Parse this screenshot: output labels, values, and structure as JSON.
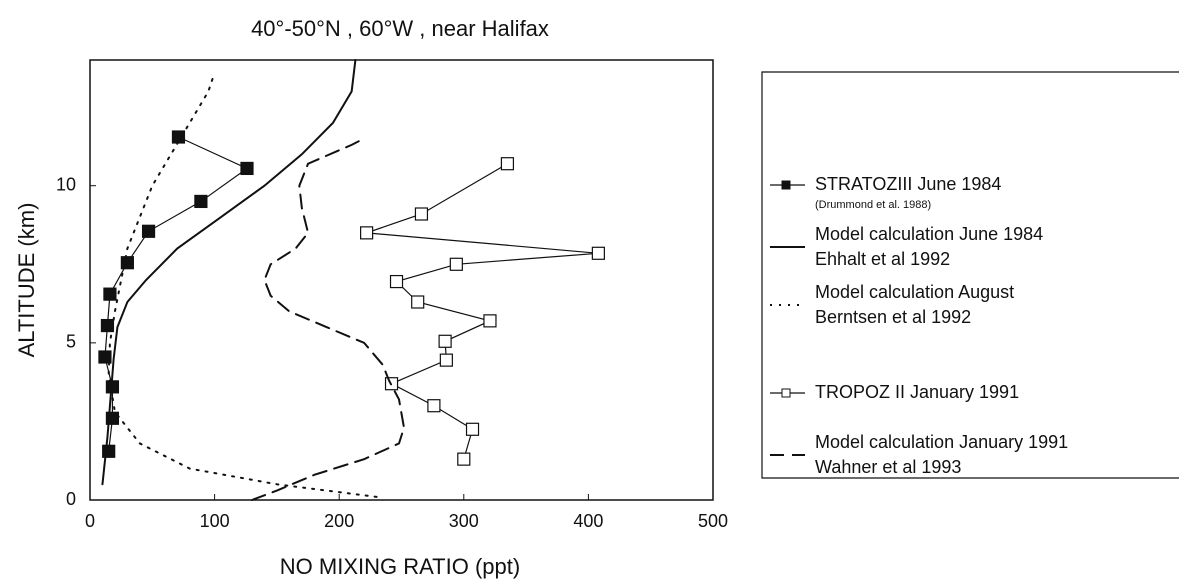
{
  "chart_data": {
    "type": "line",
    "title": "40°-50°N , 60°W , near Halifax",
    "x_label": "NO MIXING RATIO (ppt)",
    "y_label": "ALTITUDE (km)",
    "xlim": [
      0,
      500
    ],
    "ylim": [
      0,
      14
    ],
    "xticks": [
      0,
      100,
      200,
      300,
      400,
      500
    ],
    "yticks": [
      0,
      5,
      10
    ],
    "grid": false,
    "series": [
      {
        "name": "STRATOZIII June 1984",
        "source": "(Drummond et al. 1988)",
        "color": "#111111",
        "style": "solid",
        "marker": "filled-square",
        "x": [
          71,
          126,
          89,
          47,
          30,
          16,
          14,
          12,
          18,
          18,
          15
        ],
        "values": [
          11.55,
          10.55,
          9.5,
          8.55,
          7.55,
          6.55,
          5.55,
          4.55,
          3.6,
          2.6,
          1.55
        ]
      },
      {
        "name": "Model calculation June 1984",
        "source": "Ehhalt et al 1992",
        "color": "#111111",
        "style": "solid",
        "marker": null,
        "x": [
          10,
          14,
          17,
          19,
          22,
          30,
          45,
          70,
          105,
          140,
          170,
          195,
          210,
          213
        ],
        "values": [
          0.5,
          2,
          3.5,
          4.5,
          5.5,
          6.3,
          7,
          8,
          9,
          10,
          11,
          12,
          13,
          14
        ]
      },
      {
        "name": "Model calculation August",
        "source": "Berntsen et al 1992",
        "color": "#111111",
        "style": "dotted",
        "marker": null,
        "x": [
          230,
          150,
          80,
          40,
          20,
          15,
          16,
          20,
          25,
          30,
          40,
          50,
          65,
          80,
          95,
          100
        ],
        "values": [
          0.1,
          0.5,
          1,
          1.8,
          2.8,
          4,
          5,
          6,
          7,
          8,
          9,
          10,
          11,
          12,
          13,
          13.6
        ]
      },
      {
        "name": "TROPOZ II January 1991",
        "source": null,
        "color": "#111111",
        "style": "solid",
        "marker": "open-square",
        "x": [
          335,
          266,
          222,
          408,
          294,
          246,
          263,
          321,
          285,
          286,
          242,
          276,
          307,
          300
        ],
        "values": [
          10.7,
          9.1,
          8.5,
          7.85,
          7.5,
          6.95,
          6.3,
          5.7,
          5.05,
          4.45,
          3.7,
          3.0,
          2.25,
          1.3
        ]
      },
      {
        "name": "Model calculation January 1991",
        "source": "Wahner et al 1993",
        "color": "#111111",
        "style": "dashed",
        "marker": null,
        "x": [
          130,
          150,
          180,
          220,
          248,
          252,
          248,
          240,
          235,
          220,
          190,
          160,
          145,
          140,
          145,
          165,
          175,
          170,
          168,
          175,
          210,
          220
        ],
        "values": [
          0,
          0.3,
          0.8,
          1.3,
          1.8,
          2.3,
          3.2,
          3.8,
          4.3,
          5,
          5.5,
          6,
          6.5,
          7,
          7.5,
          8,
          8.5,
          9.3,
          10,
          10.7,
          11.3,
          11.5
        ]
      }
    ]
  }
}
